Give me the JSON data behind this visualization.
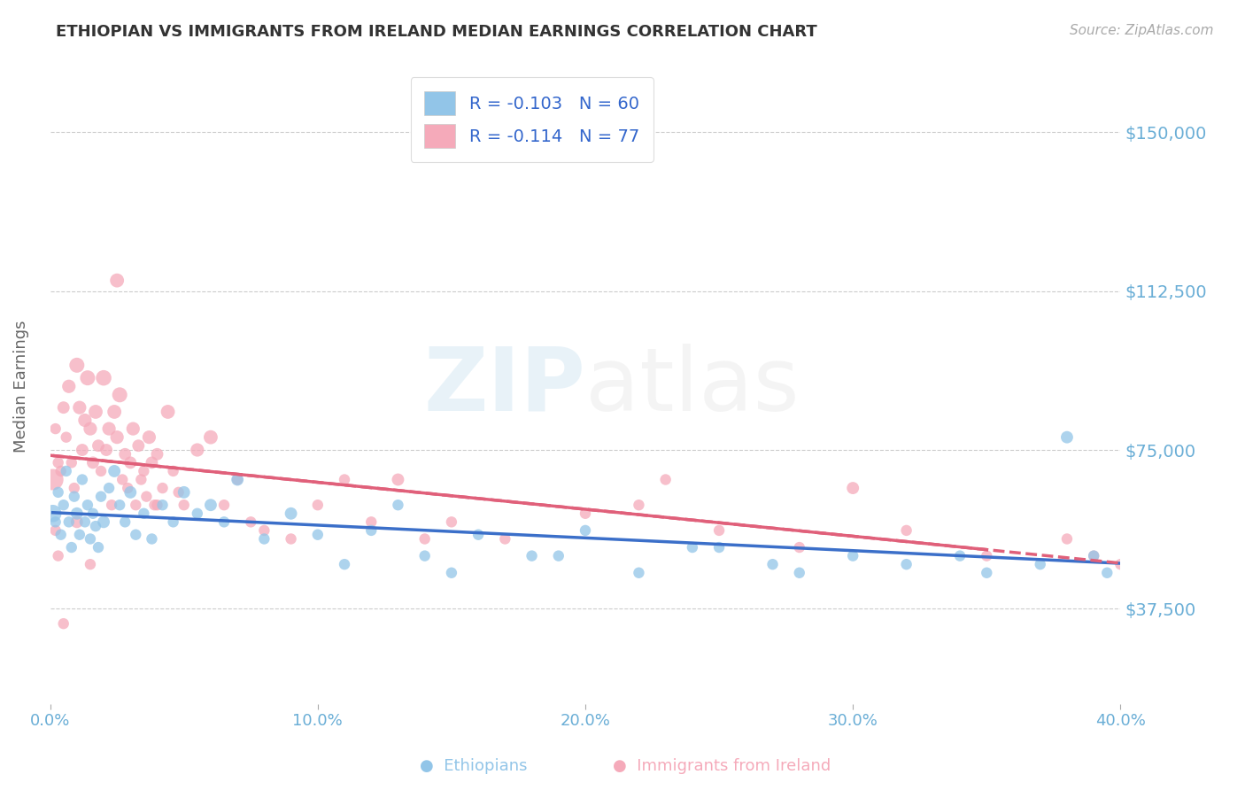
{
  "title": "ETHIOPIAN VS IMMIGRANTS FROM IRELAND MEDIAN EARNINGS CORRELATION CHART",
  "source": "Source: ZipAtlas.com",
  "ylabel": "Median Earnings",
  "xlim": [
    0.0,
    0.4
  ],
  "ylim": [
    15000,
    165000
  ],
  "yticks": [
    37500,
    75000,
    112500,
    150000
  ],
  "ytick_labels": [
    "$37,500",
    "$75,000",
    "$112,500",
    "$150,000"
  ],
  "xticks": [
    0.0,
    0.1,
    0.2,
    0.3,
    0.4
  ],
  "xtick_labels": [
    "0.0%",
    "10.0%",
    "20.0%",
    "30.0%",
    "40.0%"
  ],
  "legend_r1": "R = -0.103",
  "legend_n1": "N = 60",
  "legend_r2": "R = -0.114",
  "legend_n2": "N = 77",
  "blue_color": "#92C5E8",
  "pink_color": "#F5AABA",
  "trend_blue": "#3B6FC9",
  "trend_pink": "#E0607A",
  "title_color": "#333333",
  "axis_label_color": "#666666",
  "tick_color": "#6aaed6",
  "grid_color": "#cccccc",
  "blue_scatter_x": [
    0.001,
    0.002,
    0.003,
    0.004,
    0.005,
    0.006,
    0.007,
    0.008,
    0.009,
    0.01,
    0.011,
    0.012,
    0.013,
    0.014,
    0.015,
    0.016,
    0.017,
    0.018,
    0.019,
    0.02,
    0.022,
    0.024,
    0.026,
    0.028,
    0.03,
    0.032,
    0.035,
    0.038,
    0.042,
    0.046,
    0.05,
    0.055,
    0.06,
    0.065,
    0.07,
    0.08,
    0.09,
    0.1,
    0.11,
    0.12,
    0.13,
    0.14,
    0.15,
    0.16,
    0.18,
    0.2,
    0.22,
    0.25,
    0.27,
    0.3,
    0.32,
    0.35,
    0.37,
    0.39,
    0.395,
    0.38,
    0.34,
    0.28,
    0.24,
    0.19
  ],
  "blue_scatter_y": [
    60000,
    58000,
    65000,
    55000,
    62000,
    70000,
    58000,
    52000,
    64000,
    60000,
    55000,
    68000,
    58000,
    62000,
    54000,
    60000,
    57000,
    52000,
    64000,
    58000,
    66000,
    70000,
    62000,
    58000,
    65000,
    55000,
    60000,
    54000,
    62000,
    58000,
    65000,
    60000,
    62000,
    58000,
    68000,
    54000,
    60000,
    55000,
    48000,
    56000,
    62000,
    50000,
    46000,
    55000,
    50000,
    56000,
    46000,
    52000,
    48000,
    50000,
    48000,
    46000,
    48000,
    50000,
    46000,
    78000,
    50000,
    46000,
    52000,
    50000
  ],
  "blue_scatter_size": [
    200,
    80,
    80,
    80,
    80,
    80,
    80,
    80,
    80,
    100,
    80,
    80,
    80,
    80,
    80,
    80,
    80,
    80,
    80,
    100,
    80,
    100,
    80,
    80,
    100,
    80,
    80,
    80,
    80,
    80,
    100,
    80,
    100,
    80,
    100,
    80,
    100,
    80,
    80,
    80,
    80,
    80,
    80,
    80,
    80,
    80,
    80,
    80,
    80,
    80,
    80,
    80,
    80,
    80,
    80,
    100,
    80,
    80,
    80,
    80
  ],
  "pink_scatter_x": [
    0.001,
    0.002,
    0.003,
    0.004,
    0.005,
    0.006,
    0.007,
    0.008,
    0.009,
    0.01,
    0.011,
    0.012,
    0.013,
    0.014,
    0.015,
    0.016,
    0.017,
    0.018,
    0.019,
    0.02,
    0.021,
    0.022,
    0.023,
    0.024,
    0.025,
    0.026,
    0.027,
    0.028,
    0.029,
    0.03,
    0.031,
    0.032,
    0.033,
    0.034,
    0.035,
    0.036,
    0.037,
    0.038,
    0.039,
    0.04,
    0.042,
    0.044,
    0.046,
    0.048,
    0.05,
    0.055,
    0.06,
    0.065,
    0.07,
    0.075,
    0.08,
    0.09,
    0.1,
    0.11,
    0.12,
    0.13,
    0.14,
    0.15,
    0.17,
    0.2,
    0.22,
    0.25,
    0.28,
    0.3,
    0.32,
    0.35,
    0.38,
    0.39,
    0.4,
    0.23,
    0.04,
    0.025,
    0.015,
    0.01,
    0.005,
    0.003,
    0.002
  ],
  "pink_scatter_y": [
    68000,
    80000,
    72000,
    70000,
    85000,
    78000,
    90000,
    72000,
    66000,
    95000,
    85000,
    75000,
    82000,
    92000,
    80000,
    72000,
    84000,
    76000,
    70000,
    92000,
    75000,
    80000,
    62000,
    84000,
    78000,
    88000,
    68000,
    74000,
    66000,
    72000,
    80000,
    62000,
    76000,
    68000,
    70000,
    64000,
    78000,
    72000,
    62000,
    74000,
    66000,
    84000,
    70000,
    65000,
    62000,
    75000,
    78000,
    62000,
    68000,
    58000,
    56000,
    54000,
    62000,
    68000,
    58000,
    68000,
    54000,
    58000,
    54000,
    60000,
    62000,
    56000,
    52000,
    66000,
    56000,
    50000,
    54000,
    50000,
    48000,
    68000,
    62000,
    115000,
    48000,
    58000,
    34000,
    50000,
    56000
  ],
  "pink_scatter_size": [
    300,
    80,
    80,
    80,
    100,
    80,
    120,
    80,
    80,
    150,
    120,
    100,
    120,
    150,
    120,
    100,
    130,
    100,
    80,
    160,
    100,
    120,
    80,
    130,
    120,
    150,
    80,
    100,
    80,
    100,
    120,
    80,
    100,
    80,
    80,
    80,
    120,
    100,
    80,
    100,
    80,
    130,
    80,
    80,
    80,
    120,
    130,
    80,
    80,
    80,
    80,
    80,
    80,
    80,
    80,
    100,
    80,
    80,
    80,
    80,
    80,
    80,
    80,
    100,
    80,
    80,
    80,
    80,
    80,
    80,
    80,
    130,
    80,
    100,
    80,
    80,
    80
  ]
}
